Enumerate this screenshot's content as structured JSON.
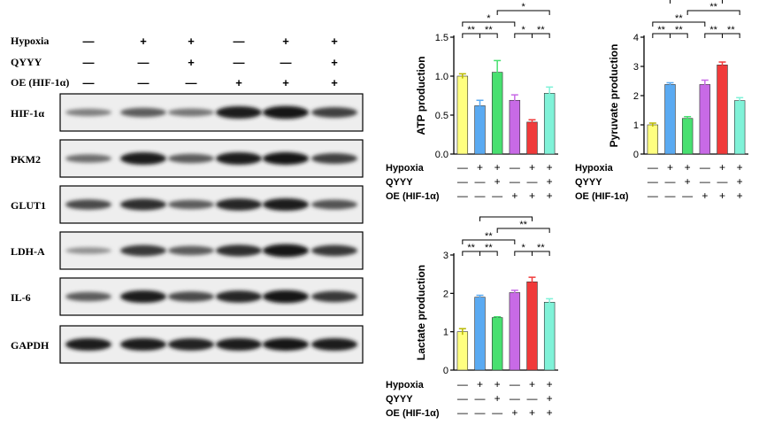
{
  "blot": {
    "conditions": [
      {
        "label": "Hypoxia",
        "marks": [
          "—",
          "+",
          "+",
          "—",
          "+",
          "+"
        ]
      },
      {
        "label": "QYYY",
        "marks": [
          "—",
          "—",
          "+",
          "—",
          "—",
          "+"
        ]
      },
      {
        "label": "OE (HIF-1α)",
        "marks": [
          "—",
          "—",
          "—",
          "+",
          "+",
          "+"
        ]
      }
    ],
    "rows": [
      {
        "label": "HIF-1α",
        "intensity": [
          0.35,
          0.55,
          0.4,
          0.9,
          0.95,
          0.7
        ]
      },
      {
        "label": "PKM2",
        "intensity": [
          0.45,
          0.9,
          0.55,
          0.9,
          0.92,
          0.7
        ]
      },
      {
        "label": "GLUT1",
        "intensity": [
          0.65,
          0.8,
          0.55,
          0.85,
          0.9,
          0.6
        ]
      },
      {
        "label": "LDH-A",
        "intensity": [
          0.25,
          0.75,
          0.55,
          0.8,
          0.95,
          0.75
        ]
      },
      {
        "label": "IL-6",
        "intensity": [
          0.55,
          0.9,
          0.65,
          0.85,
          0.95,
          0.75
        ]
      },
      {
        "label": "GAPDH",
        "intensity": [
          0.9,
          0.9,
          0.88,
          0.9,
          0.92,
          0.9
        ]
      }
    ]
  },
  "chart_data": [
    {
      "id": "atp",
      "type": "bar",
      "ylabel": "ATP production",
      "ylim": [
        0,
        1.5
      ],
      "yticks": [
        0,
        0.5,
        1.0,
        1.5
      ],
      "ytick_labels": [
        "0.0",
        "0.5",
        "1.0",
        "1.5"
      ],
      "values": [
        1.0,
        0.62,
        1.05,
        0.69,
        0.41,
        0.78
      ],
      "errors": [
        0.03,
        0.07,
        0.15,
        0.07,
        0.03,
        0.08
      ],
      "colors": [
        "#ffff80",
        "#5aaaf2",
        "#48e070",
        "#c86ae6",
        "#f03a3a",
        "#80f2d8"
      ],
      "conditions": [
        {
          "label": "Hypoxia",
          "marks": [
            "—",
            "+",
            "+",
            "—",
            "+",
            "+"
          ]
        },
        {
          "label": "QYYY",
          "marks": [
            "—",
            "—",
            "+",
            "—",
            "—",
            "+"
          ]
        },
        {
          "label": "OE (HIF-1α)",
          "marks": [
            "—",
            "—",
            "—",
            "+",
            "+",
            "+"
          ]
        }
      ],
      "comparisons": [
        {
          "from": 0,
          "to": 1,
          "level": 1,
          "label": "**"
        },
        {
          "from": 1,
          "to": 2,
          "level": 1,
          "label": "**"
        },
        {
          "from": 0,
          "to": 3,
          "level": 2,
          "label": "*"
        },
        {
          "from": 2,
          "to": 5,
          "level": 3,
          "label": "*"
        },
        {
          "from": 3,
          "to": 4,
          "level": 1,
          "label": "*"
        },
        {
          "from": 4,
          "to": 5,
          "level": 1,
          "label": "**"
        }
      ]
    },
    {
      "id": "pyruvate",
      "type": "bar",
      "ylabel": "Pyruvate production",
      "ylim": [
        0,
        4
      ],
      "yticks": [
        0,
        1,
        2,
        3,
        4
      ],
      "ytick_labels": [
        "0",
        "1",
        "2",
        "3",
        "4"
      ],
      "values": [
        1.0,
        2.38,
        1.22,
        2.38,
        3.05,
        1.83
      ],
      "errors": [
        0.06,
        0.06,
        0.06,
        0.15,
        0.1,
        0.1
      ],
      "colors": [
        "#ffff80",
        "#5aaaf2",
        "#48e070",
        "#c86ae6",
        "#f03a3a",
        "#80f2d8"
      ],
      "conditions": [
        {
          "label": "Hypoxia",
          "marks": [
            "—",
            "+",
            "+",
            "—",
            "+",
            "+"
          ]
        },
        {
          "label": "QYYY",
          "marks": [
            "—",
            "—",
            "+",
            "—",
            "—",
            "+"
          ]
        },
        {
          "label": "OE (HIF-1α)",
          "marks": [
            "—",
            "—",
            "—",
            "+",
            "+",
            "+"
          ]
        }
      ],
      "comparisons": [
        {
          "from": 0,
          "to": 1,
          "level": 1,
          "label": "**"
        },
        {
          "from": 1,
          "to": 2,
          "level": 1,
          "label": "**"
        },
        {
          "from": 0,
          "to": 3,
          "level": 2,
          "label": "**"
        },
        {
          "from": 3,
          "to": 4,
          "level": 1,
          "label": "**"
        },
        {
          "from": 4,
          "to": 5,
          "level": 1,
          "label": "**"
        },
        {
          "from": 2,
          "to": 5,
          "level": 3,
          "label": "**"
        },
        {
          "from": 1,
          "to": 4,
          "level": 4,
          "label": "**"
        }
      ]
    },
    {
      "id": "lactate",
      "type": "bar",
      "ylabel": "Lactate production",
      "ylim": [
        0,
        3
      ],
      "yticks": [
        0,
        1,
        2,
        3
      ],
      "ytick_labels": [
        "0",
        "1",
        "2",
        "3"
      ],
      "values": [
        1.0,
        1.9,
        1.37,
        2.02,
        2.3,
        1.77
      ],
      "errors": [
        0.08,
        0.05,
        0.02,
        0.06,
        0.12,
        0.09
      ],
      "colors": [
        "#ffff80",
        "#5aaaf2",
        "#48e070",
        "#c86ae6",
        "#f03a3a",
        "#80f2d8"
      ],
      "conditions": [
        {
          "label": "Hypoxia",
          "marks": [
            "—",
            "+",
            "+",
            "—",
            "+",
            "+"
          ]
        },
        {
          "label": "QYYY",
          "marks": [
            "—",
            "—",
            "+",
            "—",
            "—",
            "+"
          ]
        },
        {
          "label": "OE (HIF-1α)",
          "marks": [
            "—",
            "—",
            "—",
            "+",
            "+",
            "+"
          ]
        }
      ],
      "comparisons": [
        {
          "from": 0,
          "to": 1,
          "level": 1,
          "label": "**"
        },
        {
          "from": 1,
          "to": 2,
          "level": 1,
          "label": "**"
        },
        {
          "from": 3,
          "to": 4,
          "level": 1,
          "label": "*"
        },
        {
          "from": 4,
          "to": 5,
          "level": 1,
          "label": "**"
        },
        {
          "from": 0,
          "to": 3,
          "level": 2,
          "label": "**"
        },
        {
          "from": 2,
          "to": 5,
          "level": 3,
          "label": "**"
        },
        {
          "from": 1,
          "to": 4,
          "level": 4,
          "label": "**"
        }
      ]
    }
  ]
}
